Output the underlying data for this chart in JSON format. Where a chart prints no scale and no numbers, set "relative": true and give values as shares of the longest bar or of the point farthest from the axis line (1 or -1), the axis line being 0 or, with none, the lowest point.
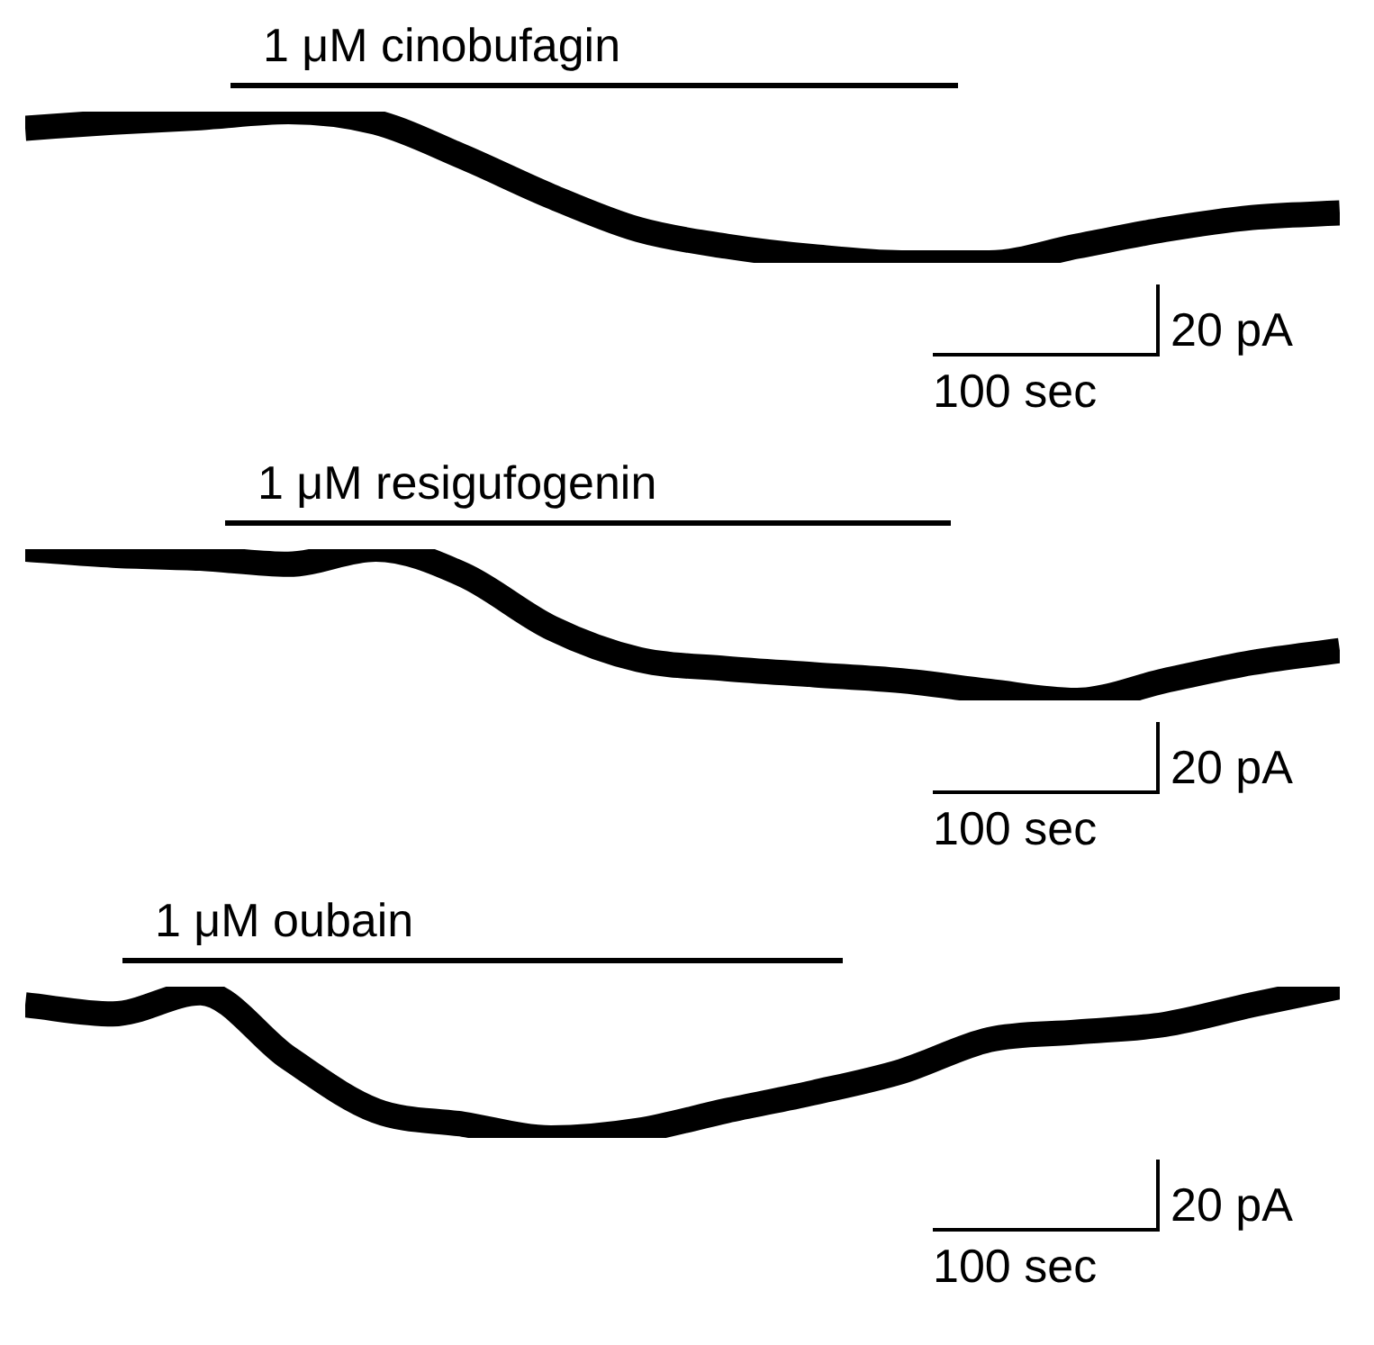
{
  "chart_data": [
    {
      "type": "line",
      "relative": true,
      "categories": [
        null,
        null,
        null,
        null,
        null,
        null,
        null,
        null,
        null,
        null,
        null,
        null,
        null,
        null,
        null,
        null
      ],
      "series": [
        {
          "color": "#000000",
          "values": [
            0.89,
            0.93,
            0.96,
            1,
            0.93,
            0.7,
            0.44,
            0.22,
            0.11,
            0.04,
            0,
            0,
            0.11,
            0.22,
            0.3,
            0.33
          ]
        }
      ],
      "annotations": [
        "1 μM cinobufagin",
        "20 pA",
        "100 sec"
      ]
    },
    {
      "type": "line",
      "relative": true,
      "categories": [
        null,
        null,
        null,
        null,
        null,
        null,
        null,
        null,
        null,
        null,
        null,
        null,
        null,
        null,
        null,
        null
      ],
      "series": [
        {
          "color": "#000000",
          "values": [
            1,
            0.96,
            0.94,
            0.9,
            1,
            0.83,
            0.48,
            0.27,
            0.21,
            0.17,
            0.13,
            0.06,
            0,
            0.13,
            0.25,
            0.33
          ]
        }
      ],
      "annotations": [
        "1 μM resigufogenin",
        "20 pA",
        "100 sec"
      ]
    },
    {
      "type": "line",
      "relative": true,
      "categories": [
        null,
        null,
        null,
        null,
        null,
        null,
        null,
        null,
        null,
        null,
        null,
        null,
        null,
        null,
        null,
        null
      ],
      "series": [
        {
          "color": "#000000",
          "values": [
            0.88,
            0.82,
            0.96,
            0.53,
            0.18,
            0.09,
            0,
            0.05,
            0.18,
            0.3,
            0.44,
            0.65,
            0.7,
            0.75,
            0.88,
            1
          ]
        }
      ],
      "annotations": [
        "1 μM oubain",
        "20 pA",
        "100 sec"
      ]
    }
  ]
}
